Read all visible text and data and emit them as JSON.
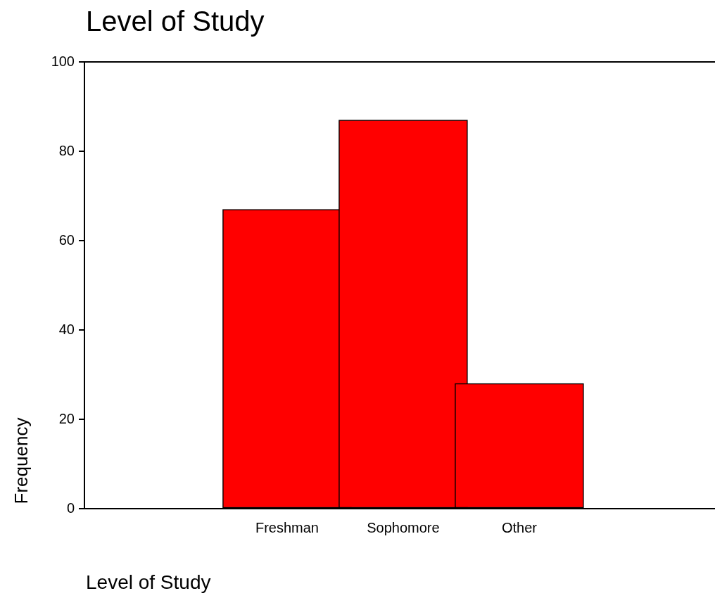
{
  "chart_data": {
    "type": "bar",
    "title": "Level of Study",
    "xlabel": "Level of Study",
    "ylabel": "Frequency",
    "categories": [
      "Freshman",
      "Sophomore",
      "Other"
    ],
    "values": [
      67,
      87,
      28
    ],
    "color": "#ff0000",
    "ylim": [
      0,
      100
    ],
    "yticks": [
      0,
      20,
      40,
      60,
      80,
      100
    ]
  }
}
